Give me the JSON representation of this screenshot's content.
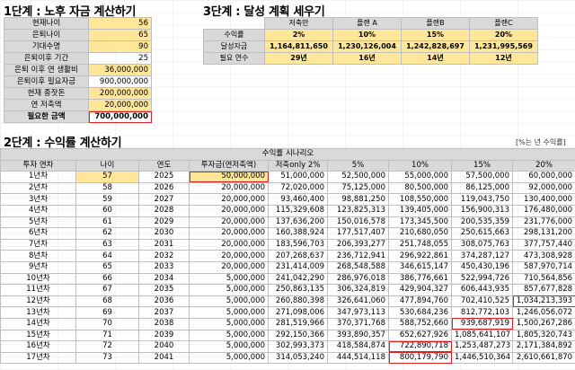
{
  "section1": {
    "title": "1단계 : 노후 자금 계산하기",
    "rows": [
      {
        "label": "현재나이",
        "value": "56",
        "yellow": true
      },
      {
        "label": "은퇴나이",
        "value": "65",
        "yellow": true
      },
      {
        "label": "기대수명",
        "value": "90",
        "yellow": true
      },
      {
        "label": "은퇴이후 기간",
        "value": "25",
        "yellow": false
      },
      {
        "label": "은퇴 이후 연 생활비",
        "value": "36,000,000",
        "yellow": true
      },
      {
        "label": "은퇴이후 필요자금",
        "value": "900,000,000",
        "yellow": false
      },
      {
        "label": "현재 종잣돈",
        "value": "200,000,000",
        "yellow": true
      },
      {
        "label": "연 저축액",
        "value": "20,000,000",
        "yellow": true
      }
    ],
    "total_label": "필요한 금액",
    "total_value": "700,000,000"
  },
  "section3": {
    "title": "3단계 : 달성 계획 세우기",
    "headers": [
      "저축만",
      "플랜 A",
      "플랜B",
      "플랜C"
    ],
    "rate_label": "수익률",
    "rates": [
      "2%",
      "10%",
      "15%",
      "20%"
    ],
    "amount_label": "달성자금",
    "amounts": [
      "1,164,811,650",
      "1,230,126,004",
      "1,242,828,697",
      "1,231,995,569"
    ],
    "years_label": "필요 연수",
    "years": [
      "29년",
      "16년",
      "14년",
      "12년"
    ]
  },
  "section2": {
    "title": "2단계 : 수익률 계산하기",
    "note": "[%는 년 수익률]",
    "scenario_header": "수익률 시나리오",
    "columns": [
      "투자 연차",
      "나이",
      "연도",
      "투자금(연저축액)",
      "저축only 2%",
      "5%",
      "10%",
      "15%",
      "20%"
    ],
    "rows": [
      [
        "1년차",
        "57",
        "2025",
        "50,000,000",
        "51,000,000",
        "52,500,000",
        "55,000,000",
        "57,500,000",
        "60,000,000"
      ],
      [
        "2년차",
        "58",
        "2026",
        "20,000,000",
        "72,020,000",
        "75,125,000",
        "80,500,000",
        "86,125,000",
        "92,000,000"
      ],
      [
        "3년차",
        "59",
        "2027",
        "20,000,000",
        "93,460,400",
        "98,881,250",
        "108,550,000",
        "119,043,750",
        "130,400,000"
      ],
      [
        "4년차",
        "60",
        "2028",
        "20,000,000",
        "115,329,608",
        "123,825,313",
        "139,405,000",
        "156,900,313",
        "176,480,000"
      ],
      [
        "5년차",
        "61",
        "2029",
        "20,000,000",
        "137,636,200",
        "150,016,578",
        "173,345,500",
        "200,535,359",
        "231,776,000"
      ],
      [
        "6년차",
        "62",
        "2030",
        "20,000,000",
        "160,388,924",
        "177,517,407",
        "210,680,050",
        "250,615,663",
        "298,131,200"
      ],
      [
        "7년차",
        "63",
        "2031",
        "20,000,000",
        "183,596,703",
        "206,393,277",
        "251,748,055",
        "308,075,763",
        "377,757,440"
      ],
      [
        "8년차",
        "64",
        "2032",
        "20,000,000",
        "207,268,637",
        "236,712,941",
        "296,922,861",
        "374,287,127",
        "473,308,928"
      ],
      [
        "9년차",
        "65",
        "2033",
        "20,000,000",
        "231,414,009",
        "268,548,588",
        "346,615,147",
        "450,430,196",
        "587,970,714"
      ],
      [
        "10년차",
        "66",
        "2034",
        "5,000,000",
        "241,042,290",
        "286,976,018",
        "386,776,661",
        "522,994,726",
        "710,564,856"
      ],
      [
        "11년차",
        "67",
        "2035",
        "5,000,000",
        "250,863,135",
        "306,324,819",
        "429,904,327",
        "606,443,935",
        "857,677,828"
      ],
      [
        "12년차",
        "68",
        "2036",
        "5,000,000",
        "260,880,398",
        "326,641,060",
        "477,894,760",
        "702,410,525",
        "1,034,213,393"
      ],
      [
        "13년차",
        "69",
        "2037",
        "5,000,000",
        "271,098,006",
        "347,973,113",
        "530,684,236",
        "812,772,103",
        "1,246,056,072"
      ],
      [
        "14년차",
        "70",
        "2038",
        "5,000,000",
        "281,519,966",
        "370,371,768",
        "588,752,660",
        "939,687,919",
        "1,500,267,286"
      ],
      [
        "15년차",
        "71",
        "2039",
        "5,000,000",
        "292,150,366",
        "393,890,357",
        "652,627,926",
        "1,085,641,107",
        "1,805,320,743"
      ],
      [
        "16년차",
        "72",
        "2040",
        "5,000,000",
        "302,993,373",
        "418,584,874",
        "722,890,718",
        "1,253,487,273",
        "2,171,384,892"
      ],
      [
        "17년차",
        "73",
        "2041",
        "5,000,000",
        "314,053,240",
        "444,514,118",
        "800,179,790",
        "1,446,510,364",
        "2,610,661,870"
      ]
    ],
    "red_cells": [
      [
        11,
        8
      ],
      [
        13,
        7
      ],
      [
        15,
        6
      ],
      [
        16,
        6
      ]
    ]
  }
}
